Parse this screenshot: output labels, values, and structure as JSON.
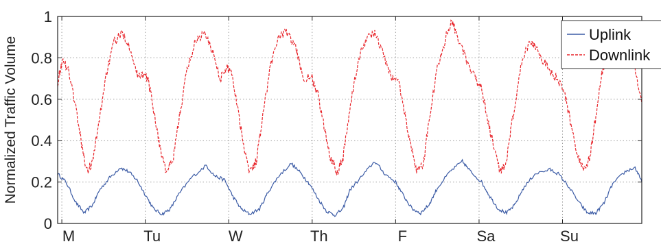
{
  "chart_data": {
    "type": "line",
    "title": "",
    "xlabel": "",
    "ylabel": "Normalized Traffic Volume",
    "xlim": [
      0,
      7
    ],
    "ylim": [
      0,
      1
    ],
    "x_ticks": [
      {
        "label": "M",
        "x": 0.05
      },
      {
        "label": "Tu",
        "x": 1.05
      },
      {
        "label": "W",
        "x": 2.05
      },
      {
        "label": "Th",
        "x": 3.05
      },
      {
        "label": "F",
        "x": 4.05
      },
      {
        "label": "Sa",
        "x": 5.05
      },
      {
        "label": "Su",
        "x": 6.05
      }
    ],
    "y_ticks": [
      0,
      0.2,
      0.4,
      0.6,
      0.8,
      1
    ],
    "y_tick_labels": [
      "0",
      "0.2",
      "0.4",
      "0.6",
      "0.8",
      "1"
    ],
    "grid": true,
    "legend": {
      "position": "top-right"
    },
    "series": [
      {
        "name": "Uplink",
        "color": "#3b5ba5",
        "style": "solid",
        "points": [
          [
            0,
            0.24
          ],
          [
            0.1,
            0.2
          ],
          [
            0.22,
            0.1
          ],
          [
            0.32,
            0.05
          ],
          [
            0.42,
            0.09
          ],
          [
            0.5,
            0.16
          ],
          [
            0.62,
            0.22
          ],
          [
            0.75,
            0.27
          ],
          [
            0.85,
            0.25
          ],
          [
            0.95,
            0.21
          ],
          [
            1.05,
            0.14
          ],
          [
            1.15,
            0.07
          ],
          [
            1.25,
            0.045
          ],
          [
            1.35,
            0.07
          ],
          [
            1.45,
            0.14
          ],
          [
            1.6,
            0.22
          ],
          [
            1.78,
            0.28
          ],
          [
            1.88,
            0.23
          ],
          [
            2,
            0.21
          ],
          [
            2.1,
            0.13
          ],
          [
            2.2,
            0.07
          ],
          [
            2.3,
            0.045
          ],
          [
            2.42,
            0.07
          ],
          [
            2.52,
            0.15
          ],
          [
            2.65,
            0.23
          ],
          [
            2.8,
            0.29
          ],
          [
            2.92,
            0.24
          ],
          [
            3.02,
            0.19
          ],
          [
            3.12,
            0.12
          ],
          [
            3.22,
            0.06
          ],
          [
            3.32,
            0.04
          ],
          [
            3.42,
            0.07
          ],
          [
            3.5,
            0.16
          ],
          [
            3.65,
            0.23
          ],
          [
            3.8,
            0.3
          ],
          [
            3.92,
            0.24
          ],
          [
            4.05,
            0.2
          ],
          [
            4.15,
            0.13
          ],
          [
            4.25,
            0.07
          ],
          [
            4.35,
            0.05
          ],
          [
            4.45,
            0.09
          ],
          [
            4.55,
            0.17
          ],
          [
            4.7,
            0.25
          ],
          [
            4.85,
            0.3
          ],
          [
            4.95,
            0.25
          ],
          [
            5.08,
            0.2
          ],
          [
            5.18,
            0.13
          ],
          [
            5.28,
            0.07
          ],
          [
            5.38,
            0.05
          ],
          [
            5.48,
            0.09
          ],
          [
            5.58,
            0.17
          ],
          [
            5.72,
            0.24
          ],
          [
            5.9,
            0.26
          ],
          [
            6,
            0.24
          ],
          [
            6.12,
            0.18
          ],
          [
            6.25,
            0.1
          ],
          [
            6.35,
            0.05
          ],
          [
            6.45,
            0.05
          ],
          [
            6.55,
            0.1
          ],
          [
            6.65,
            0.19
          ],
          [
            6.8,
            0.25
          ],
          [
            6.92,
            0.27
          ],
          [
            7,
            0.2
          ]
        ]
      },
      {
        "name": "Downlink",
        "color": "#e8262c",
        "style": "dashed",
        "points": [
          [
            0,
            0.68
          ],
          [
            0.05,
            0.78
          ],
          [
            0.12,
            0.76
          ],
          [
            0.2,
            0.6
          ],
          [
            0.28,
            0.4
          ],
          [
            0.35,
            0.25
          ],
          [
            0.42,
            0.3
          ],
          [
            0.5,
            0.5
          ],
          [
            0.58,
            0.72
          ],
          [
            0.68,
            0.88
          ],
          [
            0.78,
            0.92
          ],
          [
            0.88,
            0.84
          ],
          [
            0.95,
            0.72
          ],
          [
            1.02,
            0.72
          ],
          [
            1.08,
            0.7
          ],
          [
            1.15,
            0.55
          ],
          [
            1.22,
            0.38
          ],
          [
            1.3,
            0.25
          ],
          [
            1.38,
            0.3
          ],
          [
            1.46,
            0.52
          ],
          [
            1.55,
            0.74
          ],
          [
            1.65,
            0.88
          ],
          [
            1.75,
            0.92
          ],
          [
            1.85,
            0.84
          ],
          [
            1.95,
            0.7
          ],
          [
            2.03,
            0.75
          ],
          [
            2.08,
            0.74
          ],
          [
            2.15,
            0.58
          ],
          [
            2.22,
            0.4
          ],
          [
            2.3,
            0.25
          ],
          [
            2.38,
            0.3
          ],
          [
            2.45,
            0.5
          ],
          [
            2.55,
            0.76
          ],
          [
            2.65,
            0.91
          ],
          [
            2.75,
            0.92
          ],
          [
            2.85,
            0.85
          ],
          [
            2.95,
            0.7
          ],
          [
            3.05,
            0.7
          ],
          [
            3.12,
            0.62
          ],
          [
            3.2,
            0.45
          ],
          [
            3.27,
            0.32
          ],
          [
            3.35,
            0.25
          ],
          [
            3.42,
            0.32
          ],
          [
            3.5,
            0.55
          ],
          [
            3.6,
            0.78
          ],
          [
            3.7,
            0.9
          ],
          [
            3.8,
            0.92
          ],
          [
            3.9,
            0.82
          ],
          [
            4,
            0.7
          ],
          [
            4.08,
            0.7
          ],
          [
            4.15,
            0.55
          ],
          [
            4.22,
            0.4
          ],
          [
            4.3,
            0.26
          ],
          [
            4.38,
            0.28
          ],
          [
            4.45,
            0.5
          ],
          [
            4.55,
            0.75
          ],
          [
            4.65,
            0.9
          ],
          [
            4.72,
            0.98
          ],
          [
            4.8,
            0.9
          ],
          [
            4.9,
            0.78
          ],
          [
            5,
            0.7
          ],
          [
            5.08,
            0.66
          ],
          [
            5.15,
            0.5
          ],
          [
            5.22,
            0.38
          ],
          [
            5.3,
            0.25
          ],
          [
            5.38,
            0.3
          ],
          [
            5.45,
            0.5
          ],
          [
            5.55,
            0.75
          ],
          [
            5.65,
            0.88
          ],
          [
            5.72,
            0.86
          ],
          [
            5.8,
            0.8
          ],
          [
            5.88,
            0.75
          ],
          [
            5.98,
            0.7
          ],
          [
            6.08,
            0.62
          ],
          [
            6.15,
            0.48
          ],
          [
            6.22,
            0.35
          ],
          [
            6.3,
            0.25
          ],
          [
            6.38,
            0.32
          ],
          [
            6.45,
            0.52
          ],
          [
            6.52,
            0.72
          ],
          [
            6.6,
            0.85
          ],
          [
            6.68,
            0.88
          ],
          [
            6.76,
            0.85
          ],
          [
            6.84,
            0.82
          ],
          [
            6.92,
            0.75
          ],
          [
            7,
            0.58
          ]
        ]
      }
    ]
  }
}
